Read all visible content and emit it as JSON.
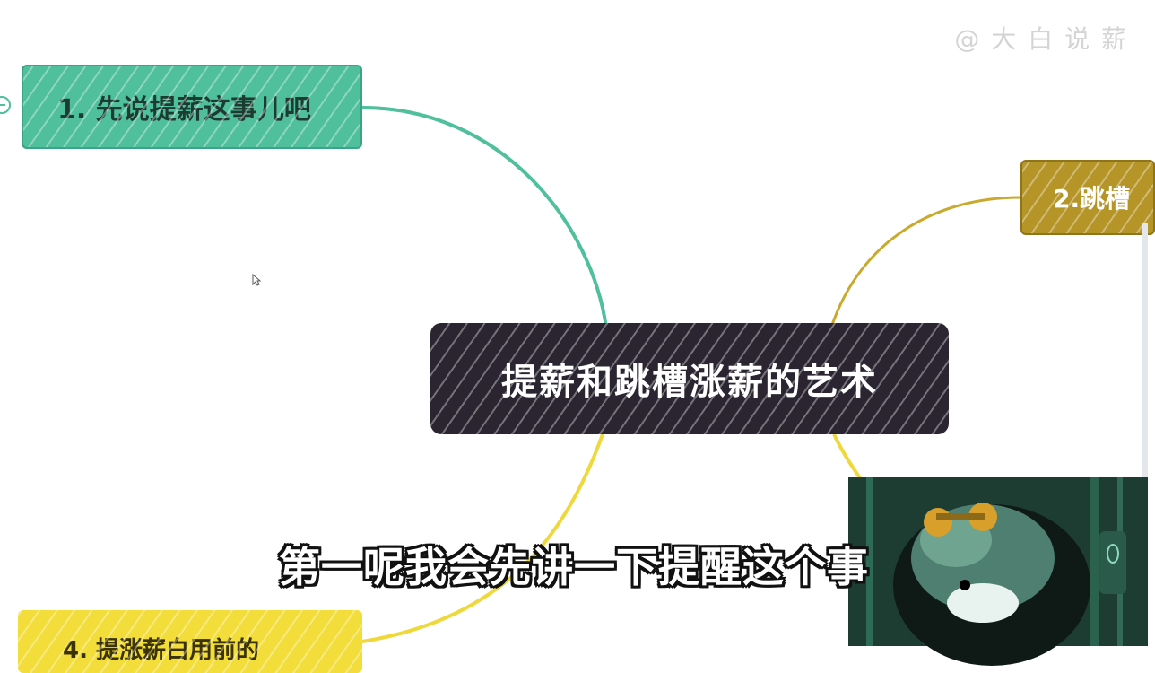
{
  "watermark": "@ 大 白 说 薪",
  "center_node": {
    "label": "提薪和跳槽涨薪的艺术"
  },
  "branches": [
    {
      "label": "1. 先说提薪这事儿吧",
      "color": "#4fbf9c"
    },
    {
      "label": "2.跳槽",
      "color": "#b59428"
    },
    {
      "label": "4. 提涨薪白用前的",
      "color": "#f2dd3a"
    }
  ],
  "subtitle": "第一呢我会先讲一下提醒这个事",
  "icons": {
    "collapse_toggle": "minus-circle-icon",
    "cursor": "mouse-pointer-icon",
    "webcam": "red-panda-avatar"
  }
}
